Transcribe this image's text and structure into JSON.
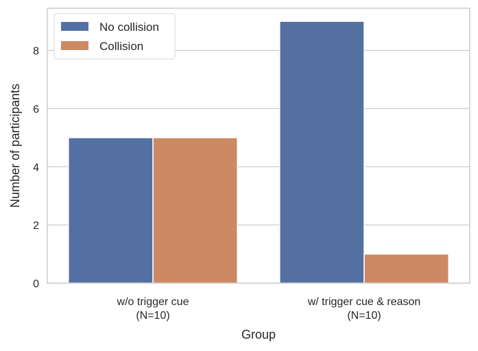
{
  "chart_data": {
    "type": "bar",
    "title": "",
    "xlabel": "Group",
    "ylabel": "Number of participants",
    "categories": [
      [
        "w/o trigger cue",
        "(N=10)"
      ],
      [
        "w/ trigger cue & reason",
        "(N=10)"
      ]
    ],
    "series": [
      {
        "name": "No collision",
        "color": "#5470a2",
        "values": [
          5,
          9
        ]
      },
      {
        "name": "Collision",
        "color": "#cc8963",
        "values": [
          5,
          1
        ]
      }
    ],
    "ylim": [
      0,
      9.45
    ],
    "yticks": [
      0,
      2,
      4,
      6,
      8
    ],
    "grid": "horizontal",
    "legend": "top-left"
  }
}
